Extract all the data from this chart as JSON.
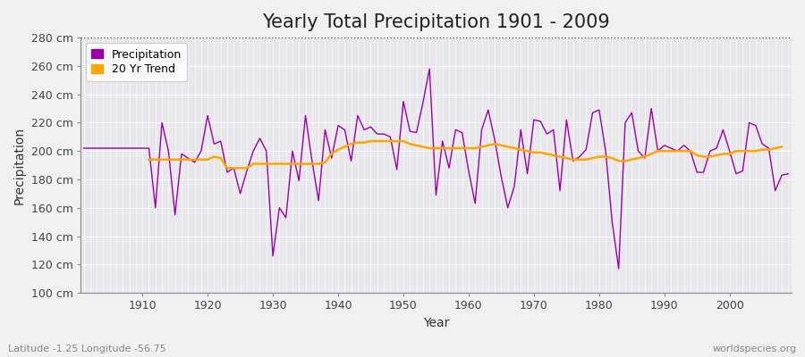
{
  "title": "Yearly Total Precipitation 1901 - 2009",
  "xlabel": "Year",
  "ylabel": "Precipitation",
  "lat_lon_label": "Latitude -1.25 Longitude -56.75",
  "watermark": "worldspecies.org",
  "years": [
    1901,
    1902,
    1903,
    1904,
    1905,
    1906,
    1907,
    1908,
    1909,
    1910,
    1911,
    1912,
    1913,
    1914,
    1915,
    1916,
    1917,
    1918,
    1919,
    1920,
    1921,
    1922,
    1923,
    1924,
    1925,
    1926,
    1927,
    1928,
    1929,
    1930,
    1931,
    1932,
    1933,
    1934,
    1935,
    1936,
    1937,
    1938,
    1939,
    1940,
    1941,
    1942,
    1943,
    1944,
    1945,
    1946,
    1947,
    1948,
    1949,
    1950,
    1951,
    1952,
    1953,
    1954,
    1955,
    1956,
    1957,
    1958,
    1959,
    1960,
    1961,
    1962,
    1963,
    1964,
    1965,
    1966,
    1967,
    1968,
    1969,
    1970,
    1971,
    1972,
    1973,
    1974,
    1975,
    1976,
    1977,
    1978,
    1979,
    1980,
    1981,
    1982,
    1983,
    1984,
    1985,
    1986,
    1987,
    1988,
    1989,
    1990,
    1991,
    1992,
    1993,
    1994,
    1995,
    1996,
    1997,
    1998,
    1999,
    2000,
    2001,
    2002,
    2003,
    2004,
    2005,
    2006,
    2007,
    2008,
    2009
  ],
  "precip": [
    202,
    202,
    202,
    202,
    202,
    202,
    202,
    202,
    202,
    202,
    202,
    160,
    220,
    200,
    155,
    198,
    195,
    192,
    200,
    225,
    205,
    207,
    185,
    188,
    170,
    186,
    200,
    209,
    200,
    126,
    160,
    153,
    200,
    179,
    225,
    193,
    165,
    215,
    195,
    218,
    215,
    193,
    225,
    215,
    217,
    212,
    212,
    210,
    187,
    235,
    214,
    213,
    234,
    258,
    169,
    207,
    188,
    215,
    213,
    186,
    163,
    215,
    229,
    208,
    182,
    160,
    175,
    215,
    184,
    222,
    221,
    212,
    215,
    172,
    222,
    193,
    196,
    201,
    227,
    229,
    200,
    150,
    117,
    220,
    227,
    200,
    195,
    230,
    200,
    204,
    202,
    200,
    204,
    200,
    185,
    185,
    200,
    202,
    215,
    200,
    184,
    186,
    220,
    218,
    205,
    202,
    172,
    183,
    184
  ],
  "trend": [
    null,
    null,
    null,
    null,
    null,
    null,
    null,
    null,
    null,
    null,
    194,
    194,
    194,
    194,
    194,
    194,
    194,
    194,
    194,
    194,
    196,
    195,
    188,
    188,
    188,
    188,
    191,
    191,
    191,
    191,
    191,
    191,
    191,
    191,
    191,
    191,
    191,
    192,
    198,
    201,
    203,
    205,
    206,
    206,
    207,
    207,
    207,
    207,
    207,
    207,
    205,
    204,
    203,
    202,
    202,
    202,
    202,
    202,
    202,
    202,
    202,
    203,
    204,
    205,
    204,
    203,
    202,
    201,
    200,
    199,
    199,
    198,
    197,
    196,
    195,
    194,
    194,
    194,
    195,
    196,
    196,
    195,
    193,
    193,
    194,
    195,
    196,
    198,
    200,
    200,
    200,
    200,
    200,
    200,
    197,
    196,
    196,
    197,
    198,
    198,
    200,
    200,
    200,
    200,
    201,
    201,
    202,
    203,
    null
  ],
  "precip_color": "#9900AA",
  "trend_color": "#FFA500",
  "fig_bg_color": "#f0f0f0",
  "plot_bg_color": "#e8e8ec",
  "grid_color": "#cccccc",
  "ylim": [
    100,
    280
  ],
  "yticks": [
    100,
    120,
    140,
    160,
    180,
    200,
    220,
    240,
    260,
    280
  ],
  "ytick_labels": [
    "100 cm",
    "120 cm",
    "140 cm",
    "160 cm",
    "180 cm",
    "200 cm",
    "220 cm",
    "240 cm",
    "260 cm",
    "280 cm"
  ],
  "hline_y": 280,
  "title_fontsize": 15,
  "axis_label_fontsize": 10,
  "tick_fontsize": 9,
  "legend_labels": [
    "Precipitation",
    "20 Yr Trend"
  ]
}
